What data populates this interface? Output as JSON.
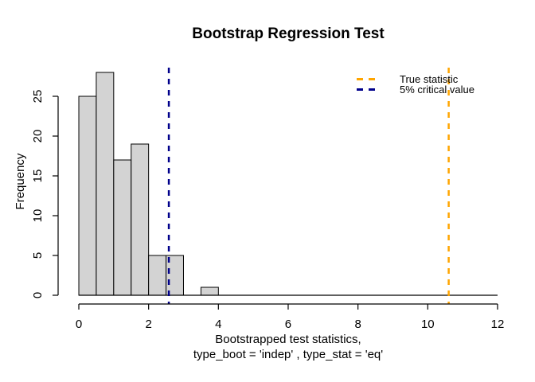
{
  "title": "Bootstrap Regression Test",
  "chart_data": {
    "type": "bar",
    "subtype": "histogram",
    "title": "Bootstrap Regression Test",
    "xlabel_line1": "Bootstrapped test statistics,",
    "xlabel_line2": "type_boot = 'indep' , type_stat = 'eq'",
    "ylabel": "Frequency",
    "bins": {
      "start": 0,
      "width": 0.5,
      "counts": [
        25,
        28,
        17,
        19,
        5,
        5,
        0,
        1
      ]
    },
    "x_ticks": [
      0,
      2,
      4,
      6,
      8,
      10,
      12
    ],
    "y_ticks": [
      0,
      5,
      10,
      15,
      20,
      25
    ],
    "xlim": [
      0,
      12
    ],
    "ylim": [
      0,
      28
    ],
    "grid": false,
    "bar_fill": "#D3D3D3",
    "bar_stroke": "#000000",
    "axis_color": "#000000",
    "vlines": [
      {
        "name": "true-statistic-line",
        "value": 10.6,
        "color": "#FFA500",
        "style": "dashed",
        "label": "True statistic"
      },
      {
        "name": "critical-value-line",
        "value": 2.58,
        "color": "#00008B",
        "style": "dashed",
        "label": "5% critical value"
      }
    ],
    "legend": {
      "position": "top-right",
      "frame": false,
      "entries": [
        {
          "label": "True statistic",
          "color": "#FFA500",
          "line_style": "dashed"
        },
        {
          "label": "5% critical value",
          "color": "#00008B",
          "line_style": "dashed"
        }
      ]
    }
  }
}
